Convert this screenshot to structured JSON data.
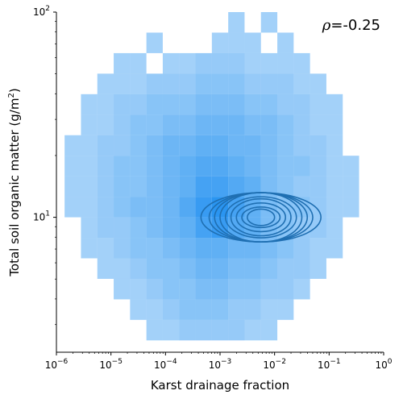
{
  "chart_data": {
    "type": "heatmap",
    "title": "",
    "xlabel": "Karst drainage fraction",
    "ylabel_main": "Total soil organic matter (g/m",
    "ylabel_sup": "2",
    "ylabel_close": ")",
    "xscale": "log",
    "yscale": "log",
    "xlim": [
      1e-06,
      1
    ],
    "ylim": [
      2.2,
      100
    ],
    "annotation": {
      "rho_symbol": "ρ",
      "text": "=-0.25"
    },
    "x_ticks": [
      {
        "value": 1e-06,
        "base": "10",
        "exp": "−6"
      },
      {
        "value": 1e-05,
        "base": "10",
        "exp": "−5"
      },
      {
        "value": 0.0001,
        "base": "10",
        "exp": "−4"
      },
      {
        "value": 0.001,
        "base": "10",
        "exp": "−3"
      },
      {
        "value": 0.01,
        "base": "10",
        "exp": "−2"
      },
      {
        "value": 0.1,
        "base": "10",
        "exp": "−1"
      },
      {
        "value": 1,
        "base": "10",
        "exp": "0"
      }
    ],
    "y_ticks": [
      {
        "value": 10,
        "base": "10",
        "exp": "1"
      },
      {
        "value": 100,
        "base": "10",
        "exp": "2"
      }
    ],
    "histogram": {
      "color": "#1f8ff0",
      "x_bin_edges_log10": [
        -5.85,
        -5.55,
        -5.25,
        -4.95,
        -4.65,
        -4.35,
        -4.05,
        -3.75,
        -3.45,
        -3.15,
        -2.85,
        -2.55,
        -2.25,
        -1.95,
        -1.65,
        -1.35,
        -1.05,
        -0.75,
        -0.45
      ],
      "y_bin_edges_log10": [
        2.0,
        1.9,
        1.8,
        1.7,
        1.6,
        1.5,
        1.4,
        1.3,
        1.2,
        1.1,
        1.0,
        0.9,
        0.8,
        0.7,
        0.6,
        0.5,
        0.4
      ],
      "counts": [
        [
          0,
          0,
          0,
          0,
          0,
          0,
          0,
          0,
          0,
          0,
          1,
          0,
          1,
          0,
          0,
          0,
          0,
          0
        ],
        [
          0,
          0,
          0,
          0,
          0,
          1,
          0,
          0,
          0,
          1,
          1,
          1,
          0,
          1,
          0,
          0,
          0,
          0
        ],
        [
          0,
          0,
          0,
          1,
          1,
          0,
          1,
          1,
          2,
          2,
          2,
          1,
          1,
          1,
          1,
          0,
          0,
          0
        ],
        [
          0,
          0,
          1,
          1,
          1,
          2,
          2,
          2,
          3,
          3,
          3,
          2,
          2,
          2,
          1,
          1,
          0,
          0
        ],
        [
          0,
          1,
          1,
          2,
          2,
          3,
          3,
          3,
          4,
          4,
          4,
          3,
          3,
          2,
          2,
          1,
          1,
          0
        ],
        [
          0,
          1,
          1,
          2,
          3,
          3,
          4,
          4,
          5,
          5,
          5,
          4,
          4,
          3,
          2,
          1,
          1,
          0
        ],
        [
          1,
          1,
          2,
          2,
          3,
          4,
          5,
          5,
          6,
          6,
          5,
          5,
          4,
          3,
          2,
          2,
          1,
          0
        ],
        [
          1,
          1,
          2,
          3,
          3,
          4,
          5,
          6,
          7,
          7,
          6,
          5,
          4,
          3,
          3,
          2,
          1,
          1
        ],
        [
          1,
          1,
          2,
          3,
          3,
          4,
          5,
          6,
          8,
          8,
          7,
          6,
          4,
          3,
          2,
          2,
          1,
          1
        ],
        [
          1,
          1,
          2,
          3,
          4,
          4,
          5,
          7,
          9,
          10,
          8,
          6,
          4,
          3,
          3,
          2,
          1,
          1
        ],
        [
          0,
          1,
          2,
          2,
          3,
          4,
          5,
          6,
          8,
          9,
          7,
          6,
          4,
          3,
          2,
          2,
          1,
          0
        ],
        [
          0,
          1,
          1,
          2,
          3,
          3,
          4,
          5,
          6,
          6,
          5,
          5,
          4,
          3,
          2,
          1,
          1,
          0
        ],
        [
          0,
          0,
          1,
          1,
          2,
          3,
          3,
          4,
          5,
          5,
          4,
          4,
          3,
          2,
          2,
          1,
          0,
          0
        ],
        [
          0,
          0,
          0,
          1,
          1,
          2,
          3,
          3,
          4,
          4,
          3,
          3,
          2,
          2,
          1,
          0,
          0,
          0
        ],
        [
          0,
          0,
          0,
          0,
          1,
          1,
          2,
          3,
          3,
          3,
          2,
          2,
          1,
          1,
          0,
          0,
          0,
          0
        ],
        [
          0,
          0,
          0,
          0,
          0,
          1,
          1,
          2,
          2,
          2,
          2,
          1,
          1,
          0,
          0,
          0,
          0,
          0
        ]
      ]
    },
    "kde": {
      "color": "#1f6fb2",
      "center_log10": [
        -2.25,
        1.0
      ],
      "levels": [
        {
          "rx": 1.1,
          "ry": 0.12
        },
        {
          "rx": 0.95,
          "ry": 0.12
        },
        {
          "rx": 0.85,
          "ry": 0.12
        },
        {
          "rx": 0.75,
          "ry": 0.12
        },
        {
          "rx": 0.65,
          "ry": 0.1
        },
        {
          "rx": 0.55,
          "ry": 0.09
        },
        {
          "rx": 0.45,
          "ry": 0.07
        },
        {
          "rx": 0.35,
          "ry": 0.05
        },
        {
          "rx": 0.25,
          "ry": 0.04
        }
      ]
    }
  }
}
